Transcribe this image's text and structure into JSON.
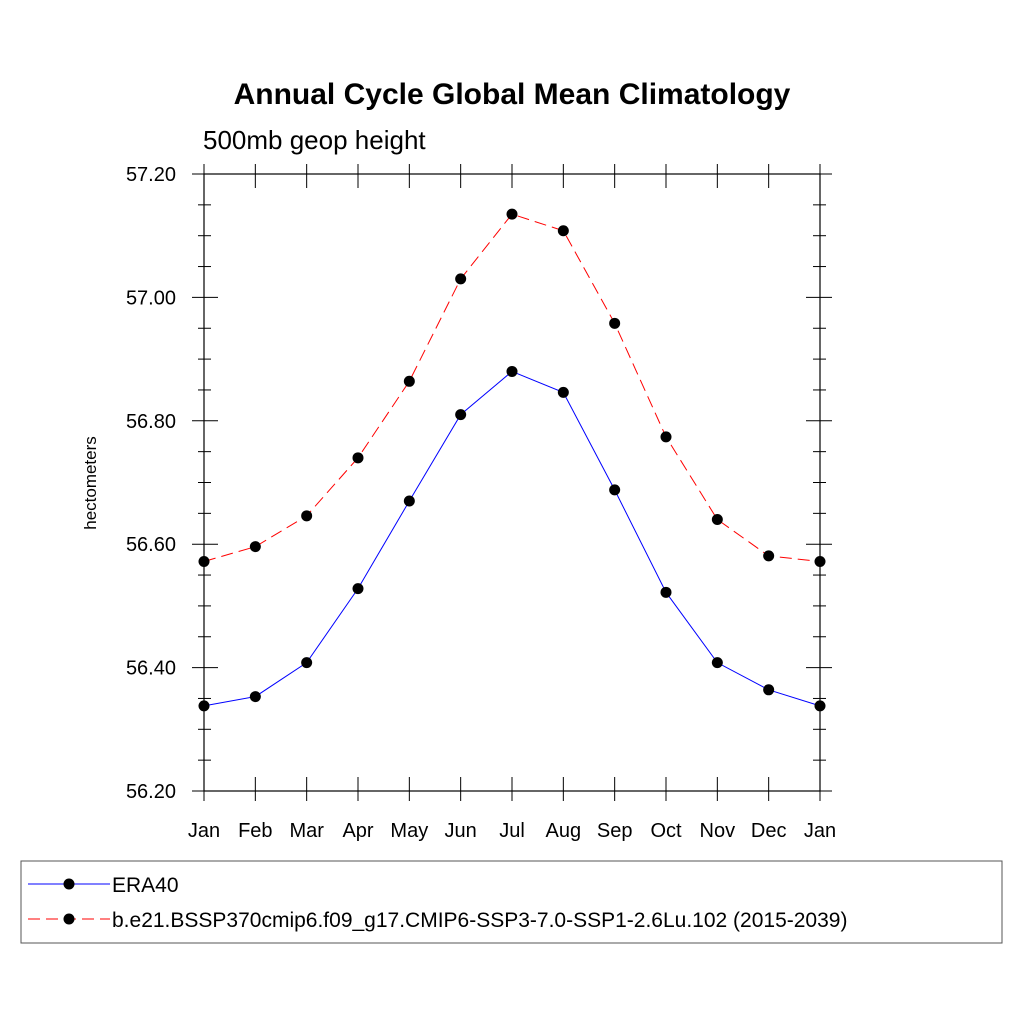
{
  "chart_data": {
    "type": "line",
    "title": "Annual Cycle Global Mean Climatology",
    "subtitle": "500mb geop height",
    "xlabel": "",
    "ylabel": "hectometers",
    "categories": [
      "Jan",
      "Feb",
      "Mar",
      "Apr",
      "May",
      "Jun",
      "Jul",
      "Aug",
      "Sep",
      "Oct",
      "Nov",
      "Dec",
      "Jan"
    ],
    "ylim": [
      56.2,
      57.2
    ],
    "yticks": [
      "56.20",
      "56.40",
      "56.60",
      "56.80",
      "57.00",
      "57.20"
    ],
    "grid": false,
    "legend_placement": "bottom",
    "series": [
      {
        "name": "ERA40",
        "color": "#0000ff",
        "line_style": "solid",
        "marker": "filled-circle",
        "values": [
          56.338,
          56.353,
          56.408,
          56.528,
          56.67,
          56.81,
          56.88,
          56.846,
          56.688,
          56.522,
          56.408,
          56.364,
          56.338
        ]
      },
      {
        "name": "b.e21.BSSP370cmip6.f09_g17.CMIP6-SSP3-7.0-SSP1-2.6Lu.102 (2015-2039)",
        "color": "#ff0000",
        "line_style": "dashed",
        "marker": "filled-circle",
        "values": [
          56.572,
          56.596,
          56.646,
          56.74,
          56.864,
          57.03,
          57.135,
          57.108,
          56.958,
          56.774,
          56.64,
          56.581,
          56.572
        ]
      }
    ]
  }
}
